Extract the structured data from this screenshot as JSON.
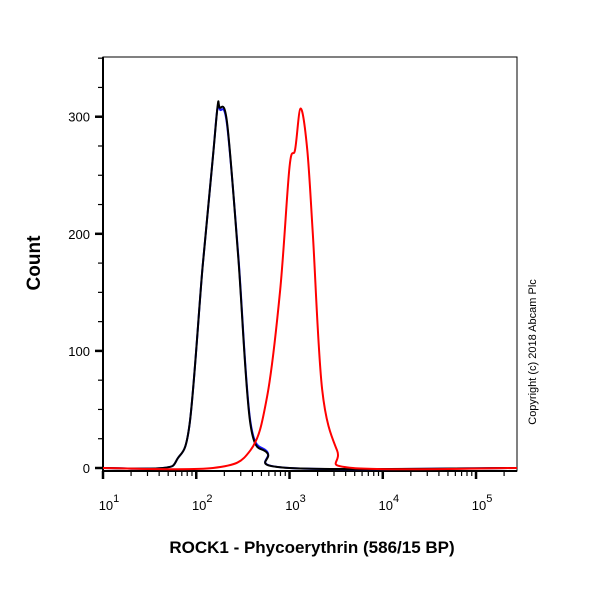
{
  "chart_data": {
    "type": "line",
    "title": "",
    "xlabel": "ROCK1 - Phycoerythrin (586/15 BP)",
    "ylabel": "Count",
    "xscale": "log",
    "xlim": [
      10,
      275000
    ],
    "ylim": [
      0,
      351
    ],
    "grid": false,
    "x_ticks": [
      {
        "base": "10",
        "exp": "1",
        "value": 10
      },
      {
        "base": "10",
        "exp": "2",
        "value": 100
      },
      {
        "base": "10",
        "exp": "3",
        "value": 1000
      },
      {
        "base": "10",
        "exp": "4",
        "value": 10000
      },
      {
        "base": "10",
        "exp": "5",
        "value": 100000
      }
    ],
    "y_ticks": [
      {
        "label": "0",
        "value": 0
      },
      {
        "label": "100",
        "value": 100
      },
      {
        "label": "200",
        "value": 200
      },
      {
        "label": "300",
        "value": 300
      }
    ],
    "series": [
      {
        "color": "#1a1aff",
        "x": [
          10,
          44,
          63,
          85,
          117,
          151,
          168,
          180,
          214,
          282,
          380,
          575,
          1000,
          275000
        ],
        "y": [
          0,
          0,
          8,
          38,
          172,
          266,
          306,
          306,
          293,
          182,
          40,
          14,
          0,
          0
        ]
      },
      {
        "color": "#000000",
        "x": [
          10,
          44,
          63,
          85,
          117,
          151,
          170,
          178,
          214,
          282,
          380,
          575,
          1000,
          275000
        ],
        "y": [
          0,
          0,
          8,
          38,
          172,
          266,
          310,
          308,
          295,
          180,
          38,
          13,
          0,
          0
        ]
      },
      {
        "color": "#ff0000",
        "x": [
          10,
          151,
          380,
          575,
          794,
          1000,
          1148,
          1318,
          1549,
          1778,
          2239,
          3236,
          4786,
          275000
        ],
        "y": [
          0,
          0,
          15,
          61,
          152,
          257,
          272,
          307,
          272,
          200,
          67,
          15,
          0,
          0
        ]
      }
    ],
    "annotation": "Copyright (c) 2018 Abcam Plc"
  }
}
